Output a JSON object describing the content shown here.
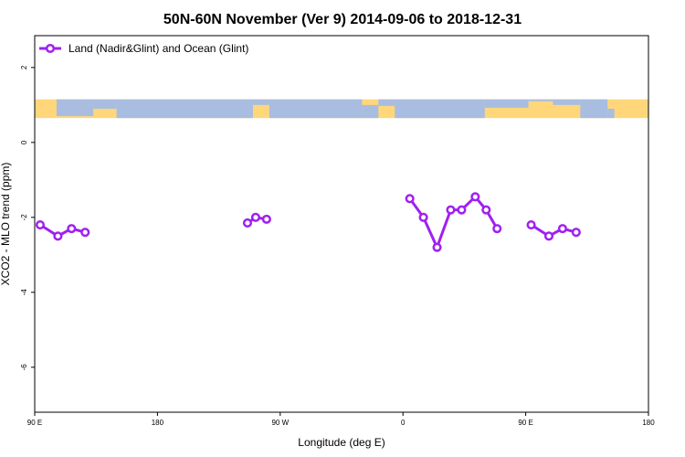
{
  "chart_data": {
    "type": "line",
    "title": "50N-60N November (Ver 9)   2014-09-06 to 2018-12-31",
    "xlabel": "Longitude (deg E)",
    "ylabel": "XCO2 - MLO trend (ppm)",
    "xlim": [
      90,
      540
    ],
    "ylim": [
      -7.2,
      2.85
    ],
    "x_ticks": [
      {
        "value": 90,
        "label": "90 E"
      },
      {
        "value": 180,
        "label": "180"
      },
      {
        "value": 270,
        "label": "90 W"
      },
      {
        "value": 360,
        "label": "0"
      },
      {
        "value": 450,
        "label": "90 E"
      },
      {
        "value": 540,
        "label": "180"
      }
    ],
    "y_ticks": [
      {
        "value": 2,
        "label": "2"
      },
      {
        "value": 0,
        "label": "0"
      },
      {
        "value": -2,
        "label": "-2"
      },
      {
        "value": -4,
        "label": "-4"
      },
      {
        "value": -6,
        "label": "-6"
      }
    ],
    "legend": {
      "position": "top-left",
      "entries": [
        "Land (Nadir&Glint) and Ocean (Glint)"
      ]
    },
    "map_band": {
      "y_range": [
        0.65,
        1.15
      ],
      "ocean_color": "#a8bde0",
      "land_color": "#ffd77a"
    },
    "series": [
      {
        "name": "Land (Nadir&Glint) and Ocean (Glint)",
        "color": "#a020f0",
        "segments": [
          [
            [
              94,
              -2.2
            ],
            [
              107,
              -2.5
            ],
            [
              117,
              -2.3
            ],
            [
              127,
              -2.4
            ]
          ],
          [
            [
              246,
              -2.15
            ],
            [
              252,
              -2.0
            ],
            [
              260,
              -2.05
            ]
          ],
          [
            [
              365,
              -1.5
            ],
            [
              375,
              -2.0
            ],
            [
              385,
              -2.8
            ],
            [
              395,
              -1.8
            ],
            [
              403,
              -1.8
            ],
            [
              413,
              -1.45
            ],
            [
              421,
              -1.8
            ],
            [
              429,
              -2.3
            ]
          ],
          [
            [
              454,
              -2.2
            ],
            [
              467,
              -2.5
            ],
            [
              477,
              -2.3
            ],
            [
              487,
              -2.4
            ]
          ]
        ]
      }
    ]
  }
}
